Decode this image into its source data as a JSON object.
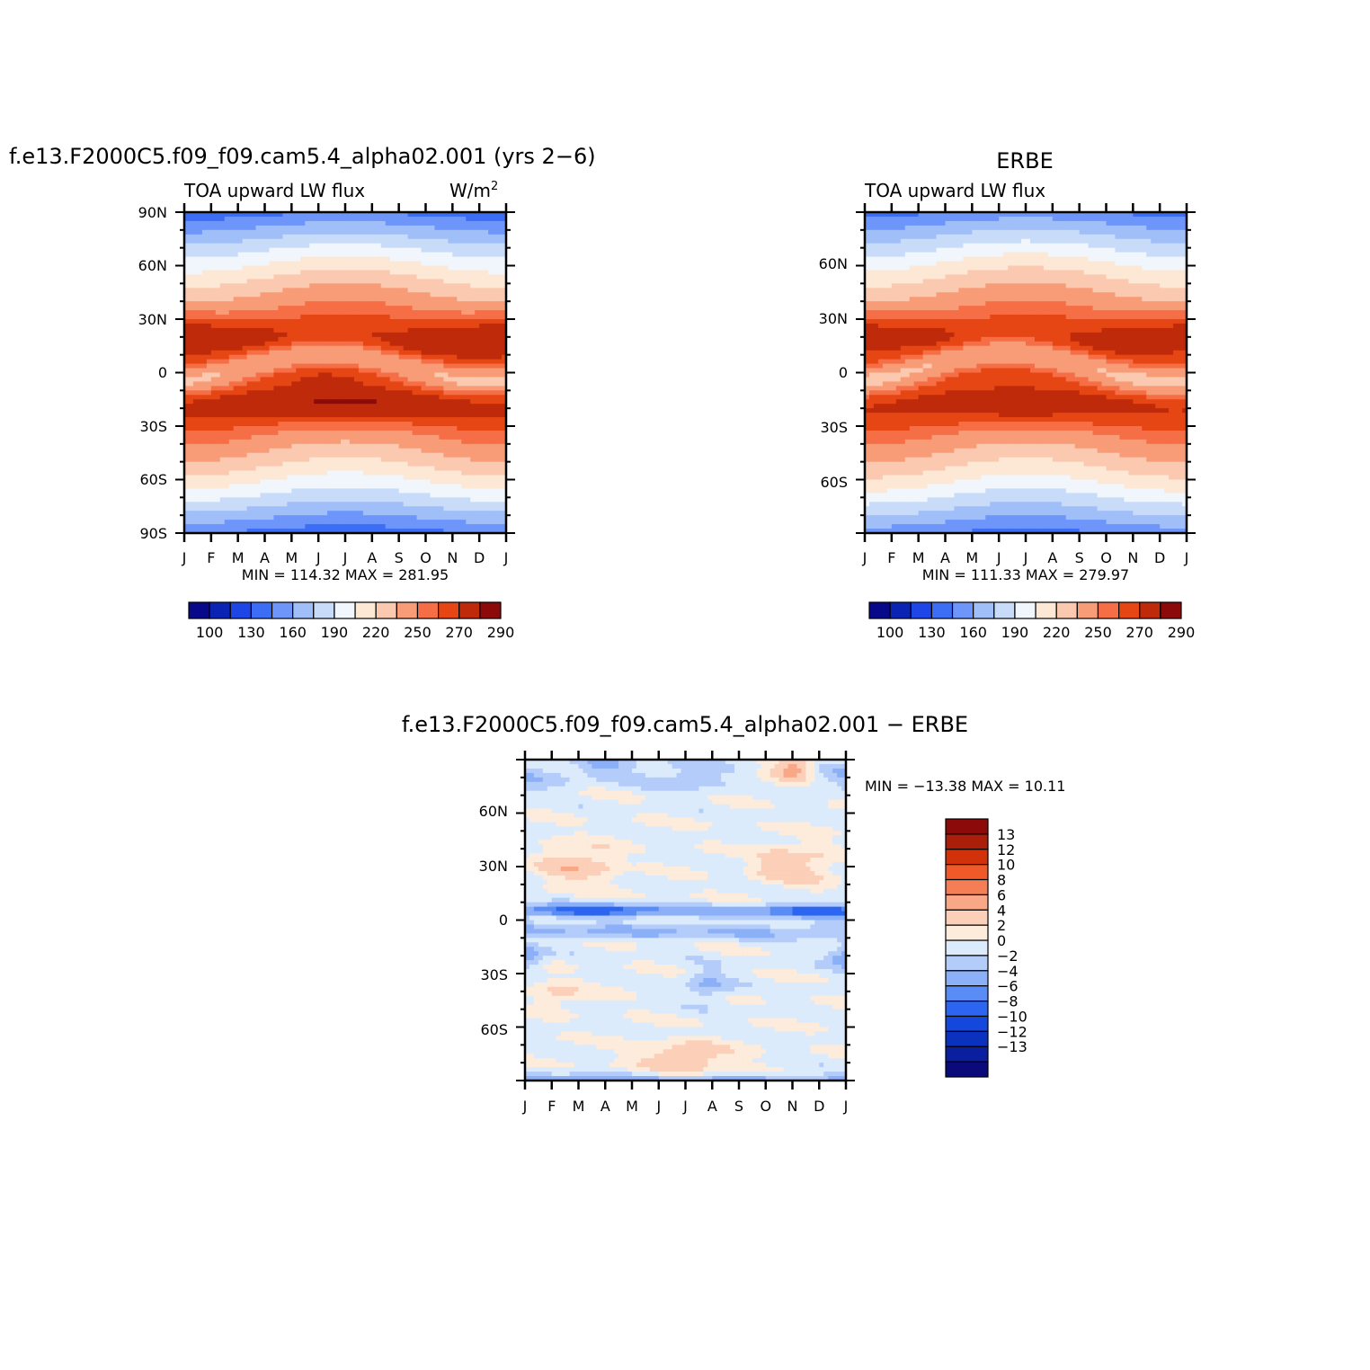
{
  "colors": {
    "abs_levels": [
      "#08088a",
      "#0a23b4",
      "#1e46e6",
      "#3c6ef5",
      "#6e96fa",
      "#a0bef8",
      "#c8dcfa",
      "#f0f6fb",
      "#fde8d6",
      "#fbc8b0",
      "#f89c78",
      "#f56e46",
      "#e64614",
      "#be2a0a",
      "#8c0a0a"
    ],
    "diff_levels": [
      "#0a0a7a",
      "#0a1ea0",
      "#0a32be",
      "#1448dc",
      "#2c66f0",
      "#5a8cf5",
      "#8cb0f8",
      "#b4ccfa",
      "#dcebfb",
      "#fdebdb",
      "#fbcfb8",
      "#f8a886",
      "#f57e54",
      "#f05a28",
      "#d2320a",
      "#aa1e0a",
      "#8c0a0a"
    ]
  },
  "months": [
    "J",
    "F",
    "M",
    "A",
    "M",
    "J",
    "J",
    "A",
    "S",
    "O",
    "N",
    "D",
    "J"
  ],
  "chart_data": [
    {
      "id": "model",
      "type": "heatmap",
      "title": "f.e13.F2000C5.f09_f09.cam5.4_alpha02.001 (yrs 2−6)",
      "left_label": "TOA upward LW flux",
      "right_label": "W/m",
      "right_label_sup": "2",
      "ylabels": [
        "90N",
        "60N",
        "30N",
        "0",
        "30S",
        "60S",
        "90S"
      ],
      "minmax": "MIN = 114.32 MAX = 281.95",
      "colorbar_labels": [
        "100",
        "130",
        "160",
        "190",
        "220",
        "250",
        "270",
        "290"
      ],
      "zrange": [
        114.32,
        281.95
      ]
    },
    {
      "id": "obs",
      "type": "heatmap",
      "title": "ERBE",
      "left_label": "TOA upward LW flux",
      "ylabels": [
        "60N",
        "30N",
        "0",
        "30S",
        "60S"
      ],
      "minmax": "MIN = 111.33 MAX = 279.97",
      "colorbar_labels": [
        "100",
        "130",
        "160",
        "190",
        "220",
        "250",
        "270",
        "290"
      ],
      "zrange": [
        111.33,
        279.97
      ]
    },
    {
      "id": "diff",
      "type": "heatmap",
      "title": "f.e13.F2000C5.f09_f09.cam5.4_alpha02.001 − ERBE",
      "ylabels": [
        "60N",
        "30N",
        "0",
        "30S",
        "60S"
      ],
      "minmax": "MIN = −13.38 MAX =   10.11",
      "colorbar_labels": [
        "13",
        "12",
        "10",
        "8",
        "6",
        "4",
        "2",
        "0",
        "−2",
        "−4",
        "−6",
        "−8",
        "−10",
        "−12",
        "−13"
      ],
      "zrange": [
        -13.38,
        10.11
      ]
    }
  ]
}
